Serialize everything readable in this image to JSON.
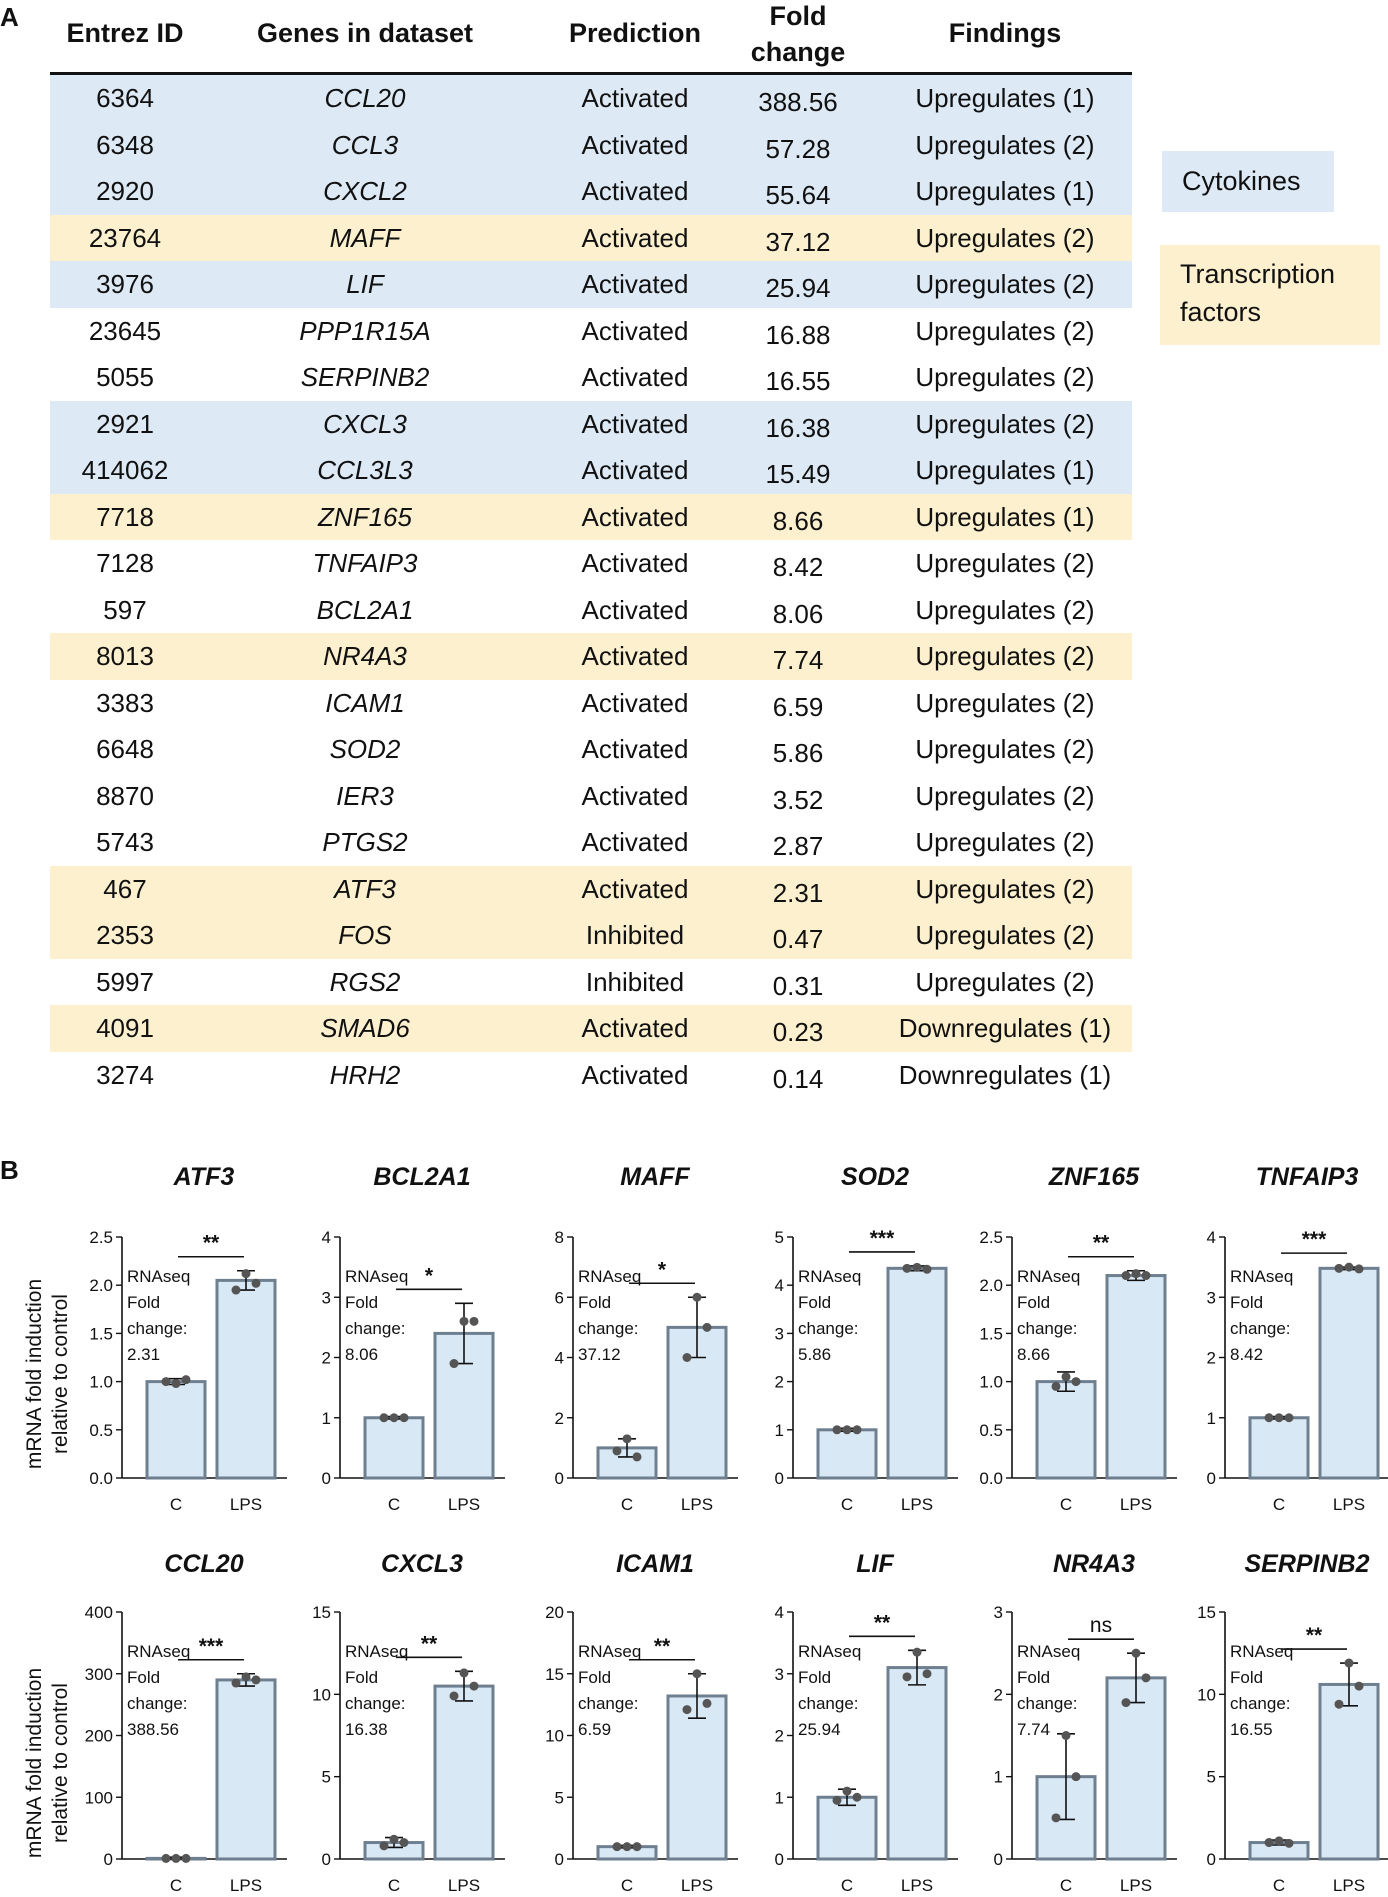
{
  "panels": {
    "a": "A",
    "b": "B"
  },
  "table": {
    "headers": [
      "Entrez ID",
      "Genes in dataset",
      "Prediction",
      "Fold change",
      "Findings"
    ],
    "rows": [
      {
        "id": "6364",
        "gene": "CCL20",
        "prediction": "Activated",
        "fold": "388.56",
        "findings": "Upregulates (1)",
        "category": "cytokine"
      },
      {
        "id": "6348",
        "gene": "CCL3",
        "prediction": "Activated",
        "fold": "57.28",
        "findings": "Upregulates (2)",
        "category": "cytokine"
      },
      {
        "id": "2920",
        "gene": "CXCL2",
        "prediction": "Activated",
        "fold": "55.64",
        "findings": "Upregulates (1)",
        "category": "cytokine"
      },
      {
        "id": "23764",
        "gene": "MAFF",
        "prediction": "Activated",
        "fold": "37.12",
        "findings": "Upregulates (2)",
        "category": "tf"
      },
      {
        "id": "3976",
        "gene": "LIF",
        "prediction": "Activated",
        "fold": "25.94",
        "findings": "Upregulates (2)",
        "category": "cytokine"
      },
      {
        "id": "23645",
        "gene": "PPP1R15A",
        "prediction": "Activated",
        "fold": "16.88",
        "findings": "Upregulates (2)",
        "category": "none"
      },
      {
        "id": "5055",
        "gene": "SERPINB2",
        "prediction": "Activated",
        "fold": "16.55",
        "findings": "Upregulates (2)",
        "category": "none"
      },
      {
        "id": "2921",
        "gene": "CXCL3",
        "prediction": "Activated",
        "fold": "16.38",
        "findings": "Upregulates (2)",
        "category": "cytokine"
      },
      {
        "id": "414062",
        "gene": "CCL3L3",
        "prediction": "Activated",
        "fold": "15.49",
        "findings": "Upregulates (1)",
        "category": "cytokine"
      },
      {
        "id": "7718",
        "gene": "ZNF165",
        "prediction": "Activated",
        "fold": "8.66",
        "findings": "Upregulates (1)",
        "category": "tf"
      },
      {
        "id": "7128",
        "gene": "TNFAIP3",
        "prediction": "Activated",
        "fold": "8.42",
        "findings": "Upregulates (2)",
        "category": "none"
      },
      {
        "id": "597",
        "gene": "BCL2A1",
        "prediction": "Activated",
        "fold": "8.06",
        "findings": "Upregulates (2)",
        "category": "none"
      },
      {
        "id": "8013",
        "gene": "NR4A3",
        "prediction": "Activated",
        "fold": "7.74",
        "findings": "Upregulates (2)",
        "category": "tf"
      },
      {
        "id": "3383",
        "gene": "ICAM1",
        "prediction": "Activated",
        "fold": "6.59",
        "findings": "Upregulates (2)",
        "category": "none"
      },
      {
        "id": "6648",
        "gene": "SOD2",
        "prediction": "Activated",
        "fold": "5.86",
        "findings": "Upregulates (2)",
        "category": "none"
      },
      {
        "id": "8870",
        "gene": "IER3",
        "prediction": "Activated",
        "fold": "3.52",
        "findings": "Upregulates (2)",
        "category": "none"
      },
      {
        "id": "5743",
        "gene": "PTGS2",
        "prediction": "Activated",
        "fold": "2.87",
        "findings": "Upregulates (2)",
        "category": "none"
      },
      {
        "id": "467",
        "gene": "ATF3",
        "prediction": "Activated",
        "fold": "2.31",
        "findings": "Upregulates (2)",
        "category": "tf"
      },
      {
        "id": "2353",
        "gene": "FOS",
        "prediction": "Inhibited",
        "fold": "0.47",
        "findings": "Upregulates (2)",
        "category": "tf"
      },
      {
        "id": "5997",
        "gene": "RGS2",
        "prediction": "Inhibited",
        "fold": "0.31",
        "findings": "Upregulates (2)",
        "category": "none"
      },
      {
        "id": "4091",
        "gene": "SMAD6",
        "prediction": "Activated",
        "fold": "0.23",
        "findings": "Downregulates (1)",
        "category": "tf"
      },
      {
        "id": "3274",
        "gene": "HRH2",
        "prediction": "Activated",
        "fold": "0.14",
        "findings": "Downregulates (1)",
        "category": "none"
      }
    ]
  },
  "legend": {
    "cytokines": "Cytokines",
    "tf_line1": "Transcription",
    "tf_line2": "factors"
  },
  "colors": {
    "cytokine_bg": "#dde9f5",
    "tf_bg": "#fcf0cf",
    "bar_fill": "#d9e8f5",
    "bar_edge": "#6e7f90",
    "ink": "#111111"
  },
  "y_axis_label": {
    "line1": "mRNA fold induction",
    "line2": "relative to control"
  },
  "chart_data": [
    {
      "type": "bar",
      "title": "ATF3",
      "categories": [
        "C",
        "LPS"
      ],
      "values": [
        1.0,
        2.05
      ],
      "errors": [
        0.03,
        0.1
      ],
      "points": [
        [
          1.0,
          0.98,
          1.02
        ],
        [
          1.95,
          2.12,
          2.02
        ]
      ],
      "yticks": [
        "0.0",
        "0.5",
        "1.0",
        "1.5",
        "2.0",
        "2.5"
      ],
      "ylim": [
        0,
        2.5
      ],
      "significance": "**",
      "note_lines": [
        "RNAseq",
        "Fold",
        "change:",
        "2.31"
      ]
    },
    {
      "type": "bar",
      "title": "BCL2A1",
      "categories": [
        "C",
        "LPS"
      ],
      "values": [
        1.0,
        2.4
      ],
      "errors": [
        0.02,
        0.5
      ],
      "points": [
        [
          1.0,
          1.0,
          1.0
        ],
        [
          1.9,
          2.6,
          2.6
        ]
      ],
      "yticks": [
        "0",
        "1",
        "2",
        "3",
        "4"
      ],
      "ylim": [
        0,
        4
      ],
      "significance": "*",
      "note_lines": [
        "RNAseq",
        "Fold",
        "change:",
        "8.06"
      ]
    },
    {
      "type": "bar",
      "title": "MAFF",
      "categories": [
        "C",
        "LPS"
      ],
      "values": [
        1.0,
        5.0
      ],
      "errors": [
        0.3,
        1.0
      ],
      "points": [
        [
          0.9,
          1.3,
          0.7
        ],
        [
          4.0,
          6.0,
          5.0
        ]
      ],
      "yticks": [
        "0",
        "2",
        "4",
        "6",
        "8"
      ],
      "ylim": [
        0,
        8
      ],
      "significance": "*",
      "note_lines": [
        "RNAseq",
        "Fold",
        "change:",
        "37.12"
      ]
    },
    {
      "type": "bar",
      "title": "SOD2",
      "categories": [
        "C",
        "LPS"
      ],
      "values": [
        1.0,
        4.35
      ],
      "errors": [
        0.03,
        0.05
      ],
      "points": [
        [
          1.0,
          1.0,
          1.0
        ],
        [
          4.35,
          4.37,
          4.33
        ]
      ],
      "yticks": [
        "0",
        "1",
        "2",
        "3",
        "4",
        "5"
      ],
      "ylim": [
        0,
        5
      ],
      "significance": "***",
      "note_lines": [
        "RNAseq",
        "Fold",
        "change:",
        "5.86"
      ]
    },
    {
      "type": "bar",
      "title": "ZNF165",
      "categories": [
        "C",
        "LPS"
      ],
      "values": [
        1.0,
        2.1
      ],
      "errors": [
        0.1,
        0.05
      ],
      "points": [
        [
          0.95,
          1.05,
          1.0
        ],
        [
          2.1,
          2.12,
          2.1
        ]
      ],
      "yticks": [
        "0.0",
        "0.5",
        "1.0",
        "1.5",
        "2.0",
        "2.5"
      ],
      "ylim": [
        0,
        2.5
      ],
      "significance": "**",
      "note_lines": [
        "RNAseq",
        "Fold",
        "change:",
        "8.66"
      ]
    },
    {
      "type": "bar",
      "title": "TNFAIP3",
      "categories": [
        "C",
        "LPS"
      ],
      "values": [
        1.0,
        3.48
      ],
      "errors": [
        0.02,
        0.02
      ],
      "points": [
        [
          1.0,
          1.0,
          1.0
        ],
        [
          3.48,
          3.5,
          3.47
        ]
      ],
      "yticks": [
        "0",
        "1",
        "2",
        "3",
        "4"
      ],
      "ylim": [
        0,
        4
      ],
      "significance": "***",
      "note_lines": [
        "RNAseq",
        "Fold",
        "change:",
        "8.42"
      ]
    },
    {
      "type": "bar",
      "title": "CCL20",
      "categories": [
        "C",
        "LPS"
      ],
      "values": [
        1.0,
        290
      ],
      "errors": [
        2,
        10
      ],
      "points": [
        [
          1.0,
          1.0,
          1.0
        ],
        [
          285,
          295,
          290
        ]
      ],
      "yticks": [
        "0",
        "100",
        "200",
        "300",
        "400"
      ],
      "ylim": [
        0,
        400
      ],
      "significance": "***",
      "note_lines": [
        "RNAseq",
        "Fold",
        "change:",
        "388.56"
      ]
    },
    {
      "type": "bar",
      "title": "CXCL3",
      "categories": [
        "C",
        "LPS"
      ],
      "values": [
        1.0,
        10.5
      ],
      "errors": [
        0.3,
        0.9
      ],
      "points": [
        [
          0.8,
          1.2,
          1.0
        ],
        [
          9.9,
          11.3,
          10.5
        ]
      ],
      "yticks": [
        "0",
        "5",
        "10",
        "15"
      ],
      "ylim": [
        0,
        15
      ],
      "significance": "**",
      "note_lines": [
        "RNAseq",
        "Fold",
        "change:",
        "16.38"
      ]
    },
    {
      "type": "bar",
      "title": "ICAM1",
      "categories": [
        "C",
        "LPS"
      ],
      "values": [
        1.0,
        13.2
      ],
      "errors": [
        0.1,
        1.8
      ],
      "points": [
        [
          1.0,
          1.0,
          1.0
        ],
        [
          12.1,
          15.0,
          12.6
        ]
      ],
      "yticks": [
        "0",
        "5",
        "10",
        "15",
        "20"
      ],
      "ylim": [
        0,
        20
      ],
      "significance": "**",
      "note_lines": [
        "RNAseq",
        "Fold",
        "change:",
        "6.59"
      ]
    },
    {
      "type": "bar",
      "title": "LIF",
      "categories": [
        "C",
        "LPS"
      ],
      "values": [
        1.0,
        3.1
      ],
      "errors": [
        0.13,
        0.28
      ],
      "points": [
        [
          0.95,
          1.1,
          1.0
        ],
        [
          2.95,
          3.35,
          3.0
        ]
      ],
      "yticks": [
        "0",
        "1",
        "2",
        "3",
        "4"
      ],
      "ylim": [
        0,
        4
      ],
      "significance": "**",
      "note_lines": [
        "RNAseq",
        "Fold",
        "change:",
        "25.94"
      ]
    },
    {
      "type": "bar",
      "title": "NR4A3",
      "categories": [
        "C",
        "LPS"
      ],
      "values": [
        1.0,
        2.2
      ],
      "errors": [
        0.52,
        0.3
      ],
      "points": [
        [
          0.5,
          1.5,
          1.0
        ],
        [
          1.9,
          2.5,
          2.2
        ]
      ],
      "yticks": [
        "0",
        "1",
        "2",
        "3"
      ],
      "ylim": [
        0,
        3
      ],
      "significance": "ns",
      "note_lines": [
        "RNAseq",
        "Fold",
        "change:",
        "7.74"
      ]
    },
    {
      "type": "bar",
      "title": "SERPINB2",
      "categories": [
        "C",
        "LPS"
      ],
      "values": [
        1.0,
        10.6
      ],
      "errors": [
        0.15,
        1.3
      ],
      "points": [
        [
          1.0,
          1.1,
          0.95
        ],
        [
          9.4,
          11.9,
          10.5
        ]
      ],
      "yticks": [
        "0",
        "5",
        "10",
        "15"
      ],
      "ylim": [
        0,
        15
      ],
      "significance": "**",
      "note_lines": [
        "RNAseq",
        "Fold",
        "change:",
        "16.55"
      ]
    }
  ]
}
